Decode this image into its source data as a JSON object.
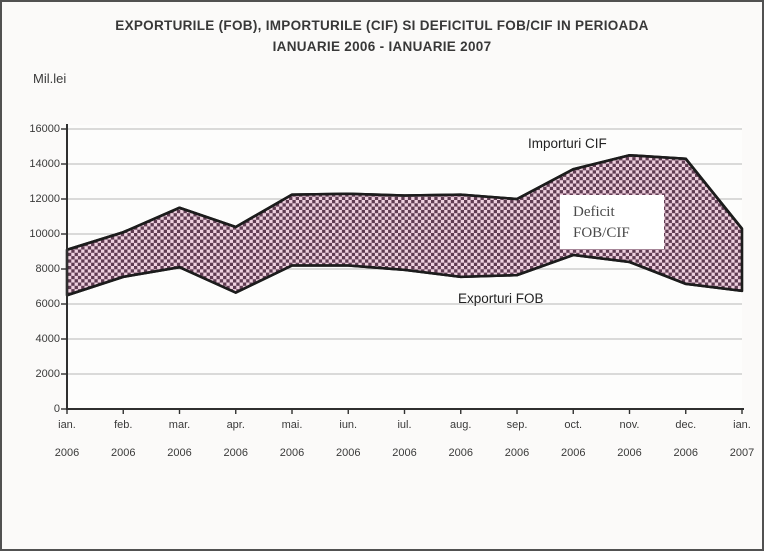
{
  "window": {
    "background": "#fbfaf9",
    "border_color": "#515151"
  },
  "title": {
    "line1": "EXPORTURILE (FOB), IMPORTURILE (CIF) SI DEFICITUL FOB/CIF IN PERIOADA",
    "line2": "IANUARIE 2006 - IANUARIE 2007"
  },
  "chart_data": {
    "type": "area",
    "title": "EXPORTURILE (FOB), IMPORTURILE (CIF) SI DEFICITUL FOB/CIF IN PERIOADA IANUARIE 2006 - IANUARIE 2007",
    "ylabel": "Mil.lei",
    "xlabel": "",
    "ylim": [
      0,
      16000
    ],
    "yticks": [
      0,
      2000,
      4000,
      6000,
      8000,
      10000,
      12000,
      14000,
      16000
    ],
    "grid": "horizontal",
    "legend_position": "none",
    "categories": [
      "ian. 2006",
      "feb. 2006",
      "mar. 2006",
      "apr. 2006",
      "mai. 2006",
      "iun. 2006",
      "iul. 2006",
      "aug. 2006",
      "sep. 2006",
      "oct. 2006",
      "nov. 2006",
      "dec. 2006",
      "ian. 2007"
    ],
    "series": [
      {
        "name": "Importuri CIF",
        "values": [
          9100,
          10100,
          11500,
          10400,
          12250,
          12300,
          12200,
          12250,
          12000,
          13700,
          14500,
          14300,
          10300
        ]
      },
      {
        "name": "Exporturi FOB",
        "values": [
          6500,
          7550,
          8100,
          6650,
          8200,
          8200,
          7950,
          7550,
          7650,
          8800,
          8400,
          7150,
          6750
        ]
      }
    ],
    "band_label": "Deficit FOB/CIF",
    "band_label_lines": [
      "Deficit",
      "FOB/CIF"
    ],
    "colors": {
      "line": "#1c1c1c",
      "pattern_dark": "#5f3c52",
      "pattern_light": "#eed0de",
      "grid": "#b6b6b6",
      "axis": "#2f2f2f",
      "plot_background": "#fdfdfc"
    }
  }
}
